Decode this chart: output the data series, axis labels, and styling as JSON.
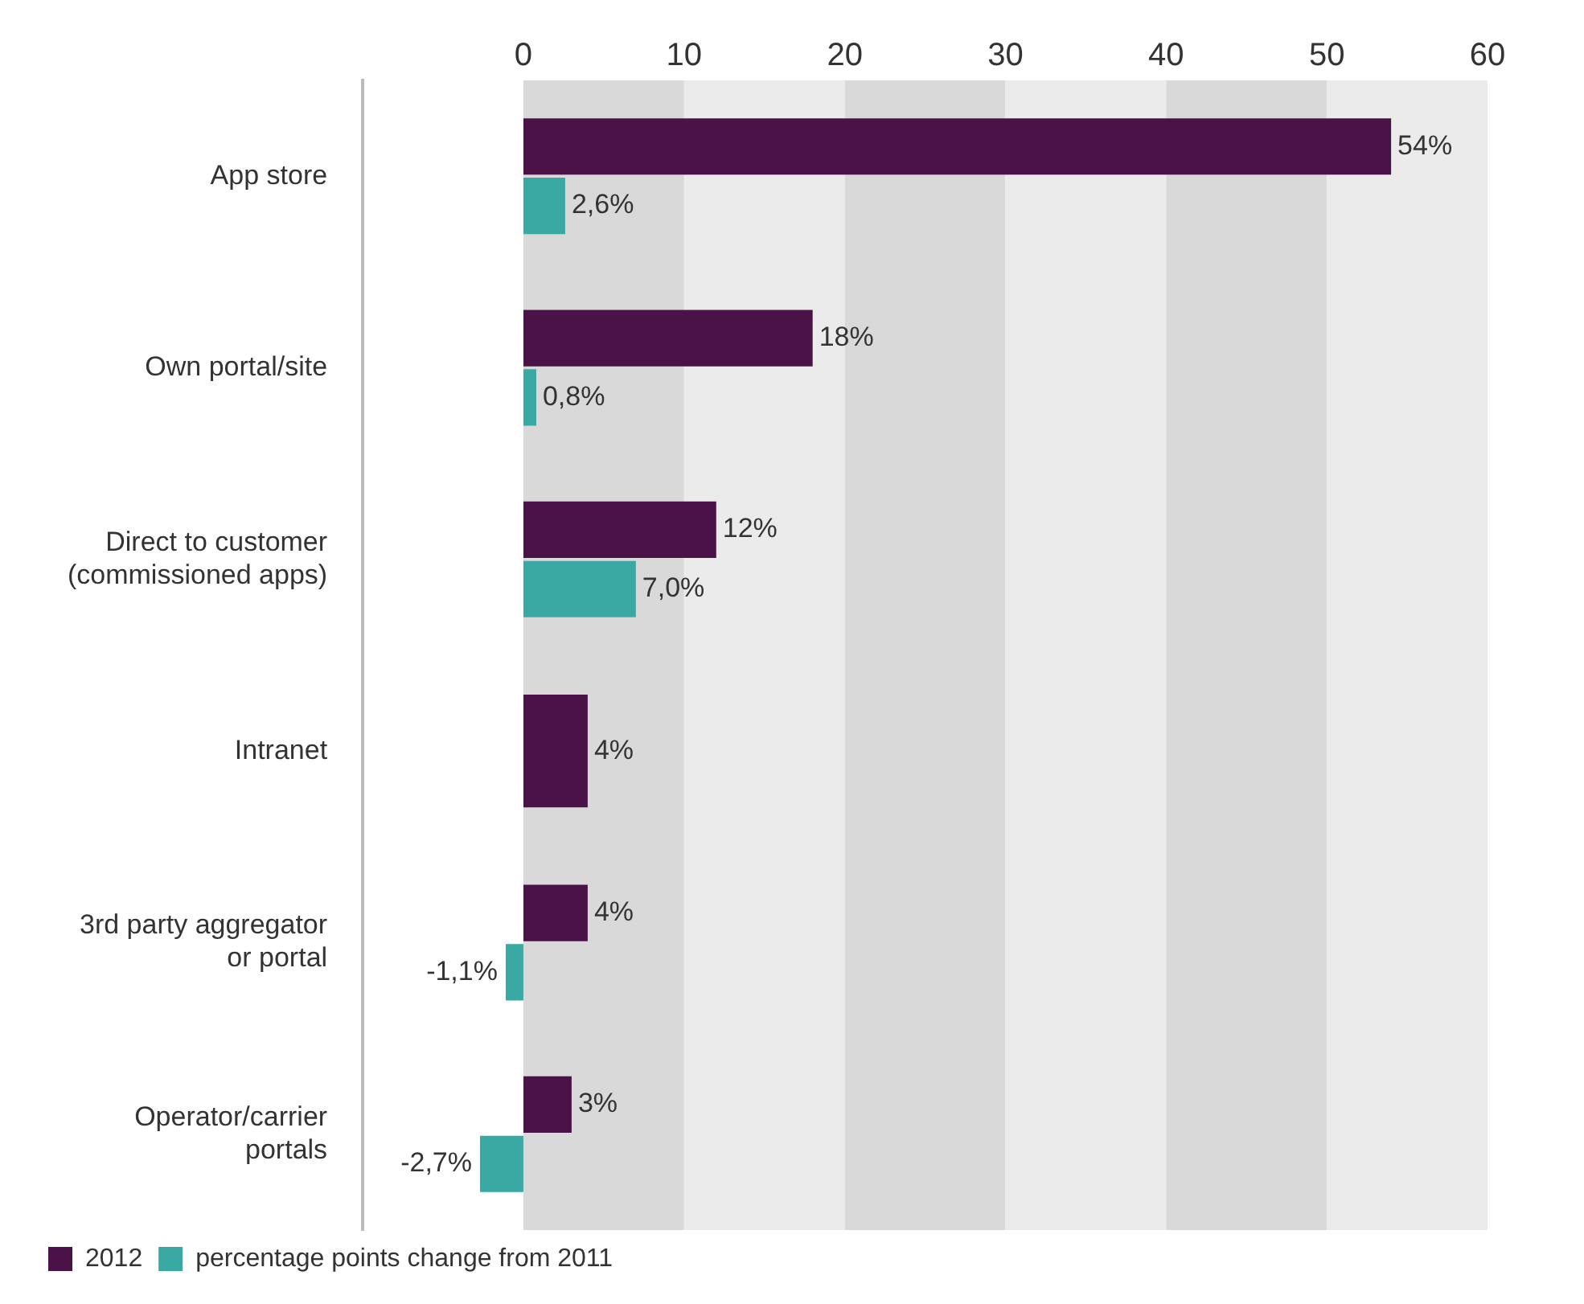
{
  "chart_data": {
    "type": "bar",
    "orientation": "horizontal",
    "categories": [
      "App store",
      "Own portal/site",
      "Direct to customer (commissioned apps)",
      "Intranet",
      "3rd party aggregator or portal",
      "Operator/carrier portals"
    ],
    "series": [
      {
        "name": "2012",
        "color": "#4b1248",
        "values": [
          54,
          18,
          12,
          4,
          4,
          3
        ],
        "value_labels": [
          "54%",
          "18%",
          "12%",
          "4%",
          "4%",
          "3%"
        ]
      },
      {
        "name": "percentage points change from 2011",
        "color": "#3aa9a4",
        "values": [
          2.6,
          0.8,
          7.0,
          null,
          -1.1,
          -2.7
        ],
        "value_labels": [
          "2,6%",
          "0,8%",
          "7,0%",
          null,
          "-1,1%",
          "-2,7%"
        ]
      }
    ],
    "xlim": [
      -10,
      60
    ],
    "xticks": [
      0,
      10,
      20,
      30,
      40,
      50,
      60
    ],
    "bands": [
      {
        "axis": "x",
        "from": 0,
        "to": 10,
        "color": "#d9d9d9"
      },
      {
        "axis": "x",
        "from": 10,
        "to": 20,
        "color": "#ebebeb"
      },
      {
        "axis": "x",
        "from": 20,
        "to": 30,
        "color": "#d9d9d9"
      },
      {
        "axis": "x",
        "from": 30,
        "to": 40,
        "color": "#ebebeb"
      },
      {
        "axis": "x",
        "from": 40,
        "to": 50,
        "color": "#d9d9d9"
      },
      {
        "axis": "x",
        "from": 50,
        "to": 60,
        "color": "#ebebeb"
      }
    ],
    "grid": false,
    "legend": "bottom left"
  }
}
